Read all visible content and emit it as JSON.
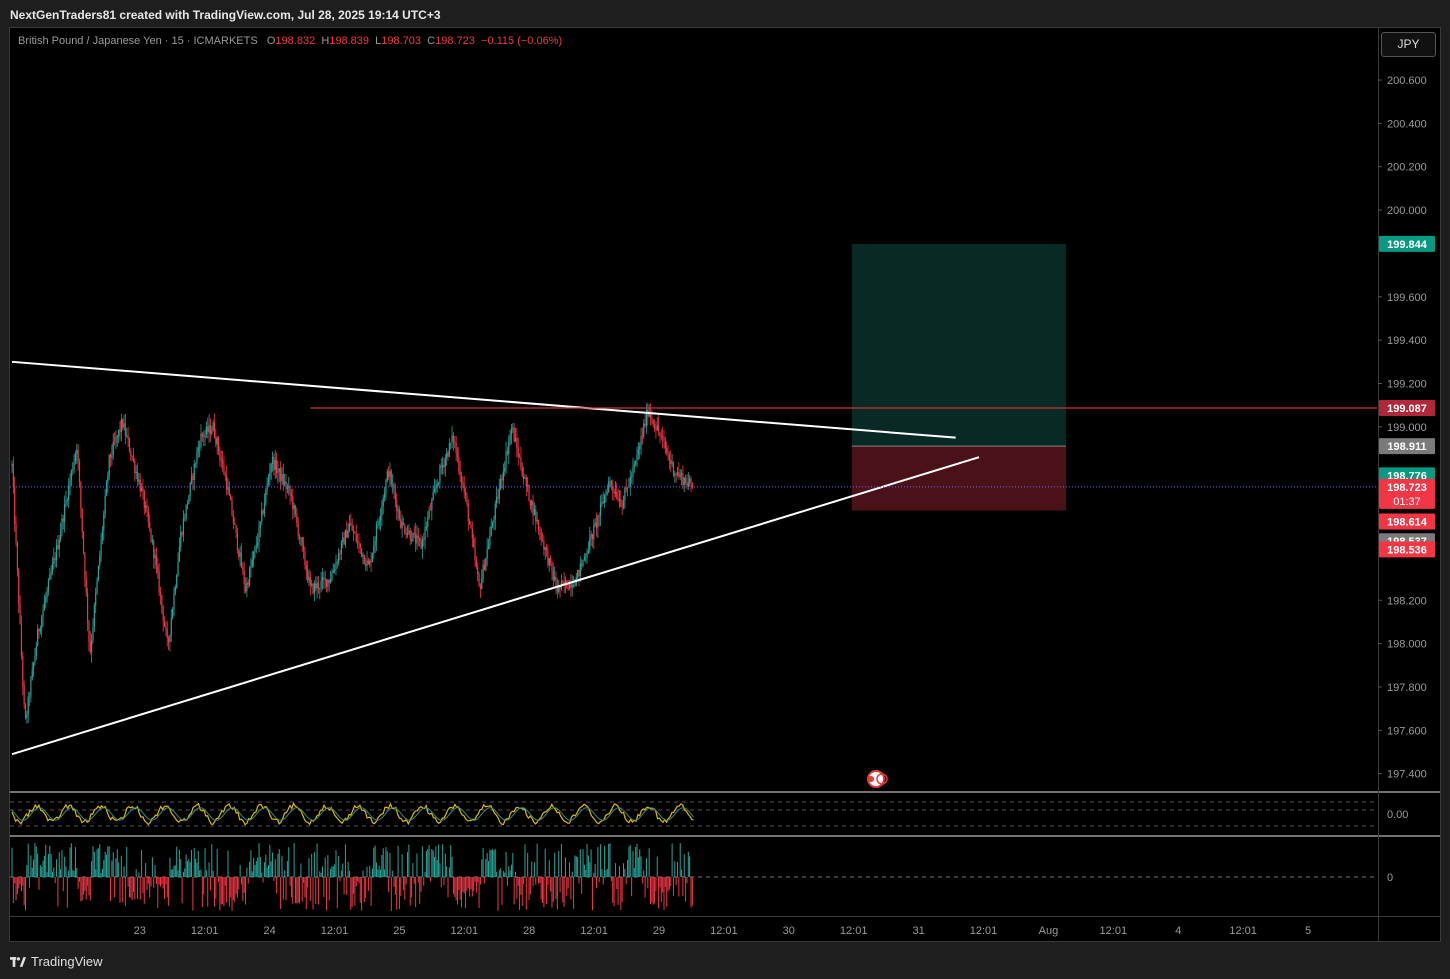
{
  "header": {
    "text": "NextGenTraders81 created with TradingView.com, Jul 28, 2025 19:14 UTC+3"
  },
  "symbol": {
    "name": "British Pound / Japanese Yen · 15 · ICMARKETS",
    "o_label": "O",
    "o": "198.832",
    "h_label": "H",
    "h": "198.839",
    "l_label": "L",
    "l": "198.703",
    "c_label": "C",
    "c": "198.723",
    "change": "−0.115 (−0.06%)"
  },
  "currency_button": "JPY",
  "footer": {
    "brand": "TradingView",
    "logo_icon": "tradingview-logo-icon"
  },
  "colors": {
    "up": "#26a69a",
    "down": "#f23645",
    "bg": "#000000",
    "target_zone": "#082a24",
    "stop_zone": "#4a1218",
    "oscillator_line": "#e8b600",
    "price_line": "#7b5cff"
  },
  "chart_data": {
    "type": "candlestick",
    "x_tick_labels": [
      "23",
      "12:01",
      "24",
      "12:01",
      "25",
      "12:01",
      "28",
      "12:01",
      "29",
      "12:01",
      "30",
      "12:01",
      "31",
      "12:01",
      "Aug",
      "12:01",
      "4",
      "12:01",
      "5"
    ],
    "y_tick_labels": [
      "200.600",
      "200.400",
      "200.200",
      "200.000",
      "199.600",
      "199.400",
      "199.200",
      "199.000",
      "198.200",
      "198.000",
      "197.800",
      "197.600",
      "197.400"
    ],
    "ylim": [
      197.32,
      200.84
    ],
    "price_labels": [
      {
        "value": 199.844,
        "text": "199.844",
        "color": "#089981"
      },
      {
        "value": 199.087,
        "text": "199.087",
        "color": "#b2283a"
      },
      {
        "value": 198.911,
        "text": "198.911",
        "color": "#7a7a7a"
      },
      {
        "value": 198.776,
        "text": "198.776",
        "color": "#089981"
      },
      {
        "value": 198.723,
        "text": "198.723",
        "sub": "01:37",
        "color": "#f23645"
      },
      {
        "value": 198.614,
        "text": "198.614",
        "color": "#f23645"
      },
      {
        "value": 198.537,
        "text": "198.537",
        "color": "#7a7a7a"
      },
      {
        "value": 198.536,
        "text": "198.536",
        "color": "#f23645"
      }
    ],
    "current_price": 198.723,
    "resistance_level": 199.087,
    "position": {
      "entry": 198.911,
      "target": 199.844,
      "stop": 198.614,
      "start_day": 28.47,
      "end_day": 30.12
    },
    "trendlines": [
      {
        "name": "upper-trendline",
        "from": [
          22.0,
          199.3
        ],
        "to": [
          29.27,
          198.95
        ]
      },
      {
        "name": "lower-trendline",
        "from": [
          22.0,
          197.49
        ],
        "to": [
          29.45,
          198.86
        ]
      }
    ],
    "indicators": [
      {
        "name": "oscillator",
        "zero_label": "0.00",
        "range": [
          -1.5,
          1.5
        ]
      },
      {
        "name": "volume-delta",
        "zero_label": "0",
        "range": [
          -1.2,
          1.2
        ]
      }
    ],
    "price_series": [
      {
        "day": 22.0,
        "price": 198.82
      },
      {
        "day": 22.1,
        "price": 197.62
      },
      {
        "day": 22.2,
        "price": 198.05
      },
      {
        "day": 22.35,
        "price": 198.45
      },
      {
        "day": 22.5,
        "price": 198.92
      },
      {
        "day": 22.6,
        "price": 197.95
      },
      {
        "day": 22.75,
        "price": 198.85
      },
      {
        "day": 22.85,
        "price": 199.02
      },
      {
        "day": 23.0,
        "price": 198.7
      },
      {
        "day": 23.1,
        "price": 198.4
      },
      {
        "day": 23.2,
        "price": 197.98
      },
      {
        "day": 23.3,
        "price": 198.5
      },
      {
        "day": 23.45,
        "price": 198.95
      },
      {
        "day": 23.55,
        "price": 199.0
      },
      {
        "day": 23.65,
        "price": 198.75
      },
      {
        "day": 23.8,
        "price": 198.25
      },
      {
        "day": 23.9,
        "price": 198.5
      },
      {
        "day": 24.0,
        "price": 198.85
      },
      {
        "day": 24.15,
        "price": 198.68
      },
      {
        "day": 24.3,
        "price": 198.25
      },
      {
        "day": 24.45,
        "price": 198.3
      },
      {
        "day": 24.6,
        "price": 198.55
      },
      {
        "day": 24.75,
        "price": 198.35
      },
      {
        "day": 24.9,
        "price": 198.8
      },
      {
        "day": 25.0,
        "price": 198.55
      },
      {
        "day": 25.15,
        "price": 198.45
      },
      {
        "day": 25.3,
        "price": 198.8
      },
      {
        "day": 25.4,
        "price": 198.95
      },
      {
        "day": 25.5,
        "price": 198.65
      },
      {
        "day": 25.6,
        "price": 198.25
      },
      {
        "day": 25.75,
        "price": 198.7
      },
      {
        "day": 25.85,
        "price": 199.0
      },
      {
        "day": 25.95,
        "price": 198.75
      },
      {
        "day": 26.1,
        "price": 198.45
      },
      {
        "day": 26.2,
        "price": 198.25
      },
      {
        "day": 26.35,
        "price": 198.3
      },
      {
        "day": 26.5,
        "price": 198.55
      },
      {
        "day": 26.6,
        "price": 198.75
      },
      {
        "day": 26.7,
        "price": 198.65
      },
      {
        "day": 26.8,
        "price": 198.82
      },
      {
        "day": 26.9,
        "price": 199.08
      },
      {
        "day": 27.0,
        "price": 198.95
      },
      {
        "day": 27.1,
        "price": 198.8
      },
      {
        "day": 27.17,
        "price": 198.76
      },
      {
        "day": 27.25,
        "price": 198.72
      }
    ]
  }
}
